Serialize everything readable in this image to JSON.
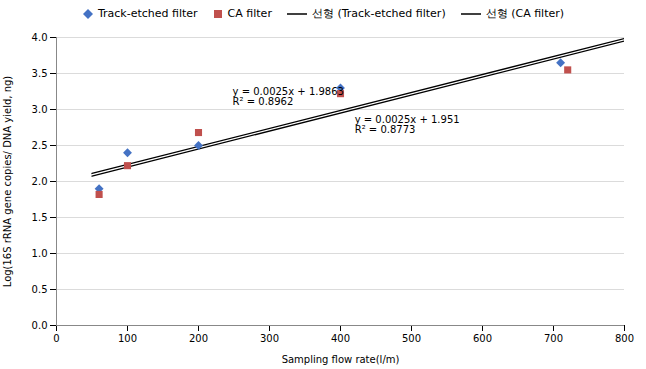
{
  "chart_data": {
    "type": "scatter",
    "xlabel": "Sampling flow rate(l/m)",
    "ylabel": "Log(16S rRNA gene copies/ DNA yield, ng)",
    "xlim": [
      0,
      800
    ],
    "ylim": [
      0,
      4
    ],
    "xticks": [
      0,
      100,
      200,
      300,
      400,
      500,
      600,
      700,
      800
    ],
    "yticks": [
      {
        "value": 0,
        "label": "0.0"
      },
      0.5,
      {
        "value": 1.0,
        "label": "1.0"
      },
      1.5,
      {
        "value": 2.0,
        "label": "2.0"
      },
      2.5,
      {
        "value": 3.0,
        "label": "3.0"
      },
      3.5,
      {
        "value": 4.0,
        "label": "4.0"
      }
    ],
    "grid": "y",
    "legend": "top",
    "series": [
      {
        "name": "Track-etched filter",
        "type": "scatter",
        "marker": "diamond",
        "color": "#4472C4",
        "x": [
          60,
          100,
          200,
          400,
          710
        ],
        "values": [
          1.9,
          2.4,
          2.5,
          3.3,
          3.65
        ]
      },
      {
        "name": "CA filter",
        "type": "scatter",
        "marker": "square",
        "color": "#C0504D",
        "x": [
          60,
          100,
          200,
          400,
          720
        ],
        "values": [
          1.82,
          2.22,
          2.68,
          3.22,
          3.55
        ]
      },
      {
        "name": "선형 (Track-etched filter)",
        "type": "line",
        "line_style": "solid",
        "color": "#000000",
        "x": [
          50,
          800
        ],
        "values": [
          2.1113,
          3.9863
        ]
      },
      {
        "name": "선형 (CA filter)",
        "type": "line",
        "line_style": "solid",
        "color": "#000000",
        "x": [
          50,
          800
        ],
        "values": [
          2.076,
          3.951
        ]
      }
    ],
    "annotations": [
      {
        "text": "y = 0.0025x + 1.9863\nR² = 0.8962",
        "x": 248,
        "y": 3.06
      },
      {
        "text": "y = 0.0025x + 1.951\nR² = 0.8773",
        "x": 420,
        "y": 2.68
      }
    ]
  }
}
